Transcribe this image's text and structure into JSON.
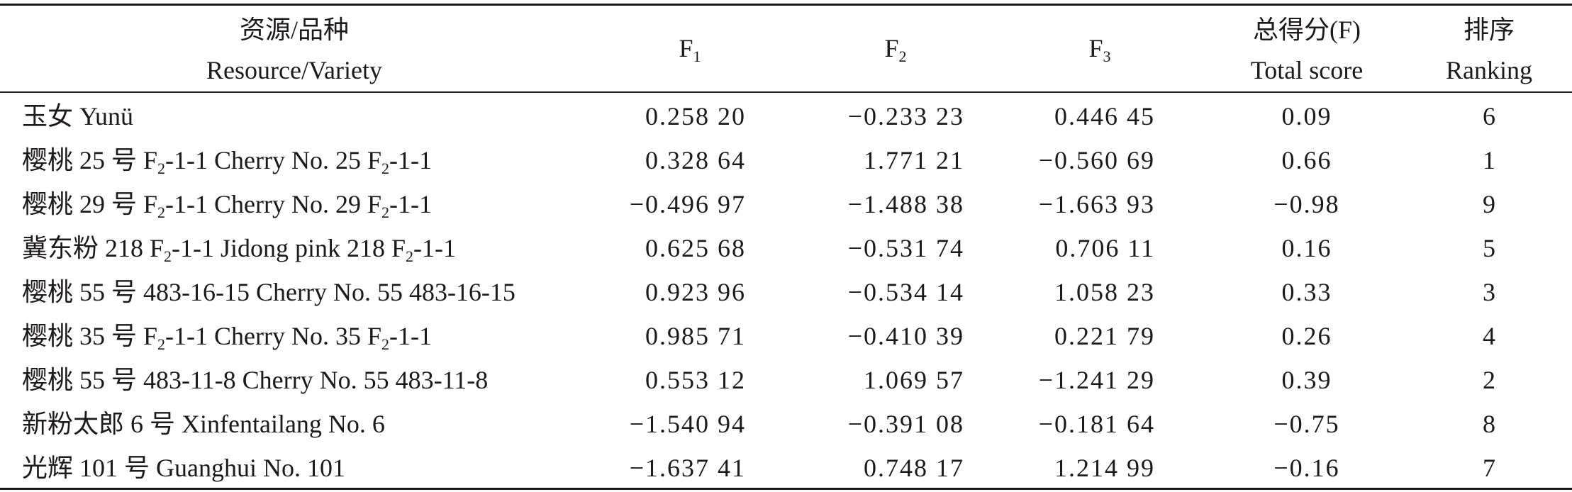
{
  "table": {
    "header": {
      "variety_zh": "资源/品种",
      "variety_en": "Resource/Variety",
      "f1": {
        "main": "F",
        "sub": "1"
      },
      "f2": {
        "main": "F",
        "sub": "2"
      },
      "f3": {
        "main": "F",
        "sub": "3"
      },
      "total_zh": "总得分(F)",
      "total_en": "Total score",
      "rank_zh": "排序",
      "rank_en": "Ranking"
    },
    "rows": [
      {
        "name": [
          {
            "text": "玉女 Yunü"
          }
        ],
        "f1": "0.258 20",
        "f2": "−0.233 23",
        "f3": "0.446 45",
        "total": "0.09",
        "rank": "6"
      },
      {
        "name": [
          {
            "text": "樱桃 25 号 F"
          },
          {
            "sub": "2"
          },
          {
            "text": "-1-1 Cherry No. 25 F"
          },
          {
            "sub": "2"
          },
          {
            "text": "-1-1"
          }
        ],
        "f1": "0.328 64",
        "f2": "1.771 21",
        "f3": "−0.560 69",
        "total": "0.66",
        "rank": "1"
      },
      {
        "name": [
          {
            "text": "樱桃 29 号 F"
          },
          {
            "sub": "2"
          },
          {
            "text": "-1-1 Cherry No. 29 F"
          },
          {
            "sub": "2"
          },
          {
            "text": "-1-1"
          }
        ],
        "f1": "−0.496 97",
        "f2": "−1.488 38",
        "f3": "−1.663 93",
        "total": "−0.98",
        "rank": "9"
      },
      {
        "name": [
          {
            "text": "冀东粉 218 F"
          },
          {
            "sub": "2"
          },
          {
            "text": "-1-1 Jidong pink 218 F"
          },
          {
            "sub": "2"
          },
          {
            "text": "-1-1"
          }
        ],
        "f1": "0.625 68",
        "f2": "−0.531 74",
        "f3": "0.706 11",
        "total": "0.16",
        "rank": "5"
      },
      {
        "name": [
          {
            "text": "樱桃 55 号 483-16-15 Cherry No. 55 483-16-15"
          }
        ],
        "f1": "0.923 96",
        "f2": "−0.534 14",
        "f3": "1.058 23",
        "total": "0.33",
        "rank": "3"
      },
      {
        "name": [
          {
            "text": "樱桃 35 号 F"
          },
          {
            "sub": "2"
          },
          {
            "text": "-1-1 Cherry No. 35 F"
          },
          {
            "sub": "2"
          },
          {
            "text": "-1-1"
          }
        ],
        "f1": "0.985 71",
        "f2": "−0.410 39",
        "f3": "0.221 79",
        "total": "0.26",
        "rank": "4"
      },
      {
        "name": [
          {
            "text": "樱桃 55 号 483-11-8 Cherry No. 55 483-11-8"
          }
        ],
        "f1": "0.553 12",
        "f2": "1.069 57",
        "f3": "−1.241 29",
        "total": "0.39",
        "rank": "2"
      },
      {
        "name": [
          {
            "text": "新粉太郎 6 号 Xinfentailang No. 6"
          }
        ],
        "f1": "−1.540 94",
        "f2": "−0.391 08",
        "f3": "−0.181 64",
        "total": "−0.75",
        "rank": "8"
      },
      {
        "name": [
          {
            "text": "光辉 101 号 Guanghui No. 101"
          }
        ],
        "f1": "−1.637 41",
        "f2": "0.748 17",
        "f3": "1.214 99",
        "total": "−0.16",
        "rank": "7"
      }
    ]
  }
}
